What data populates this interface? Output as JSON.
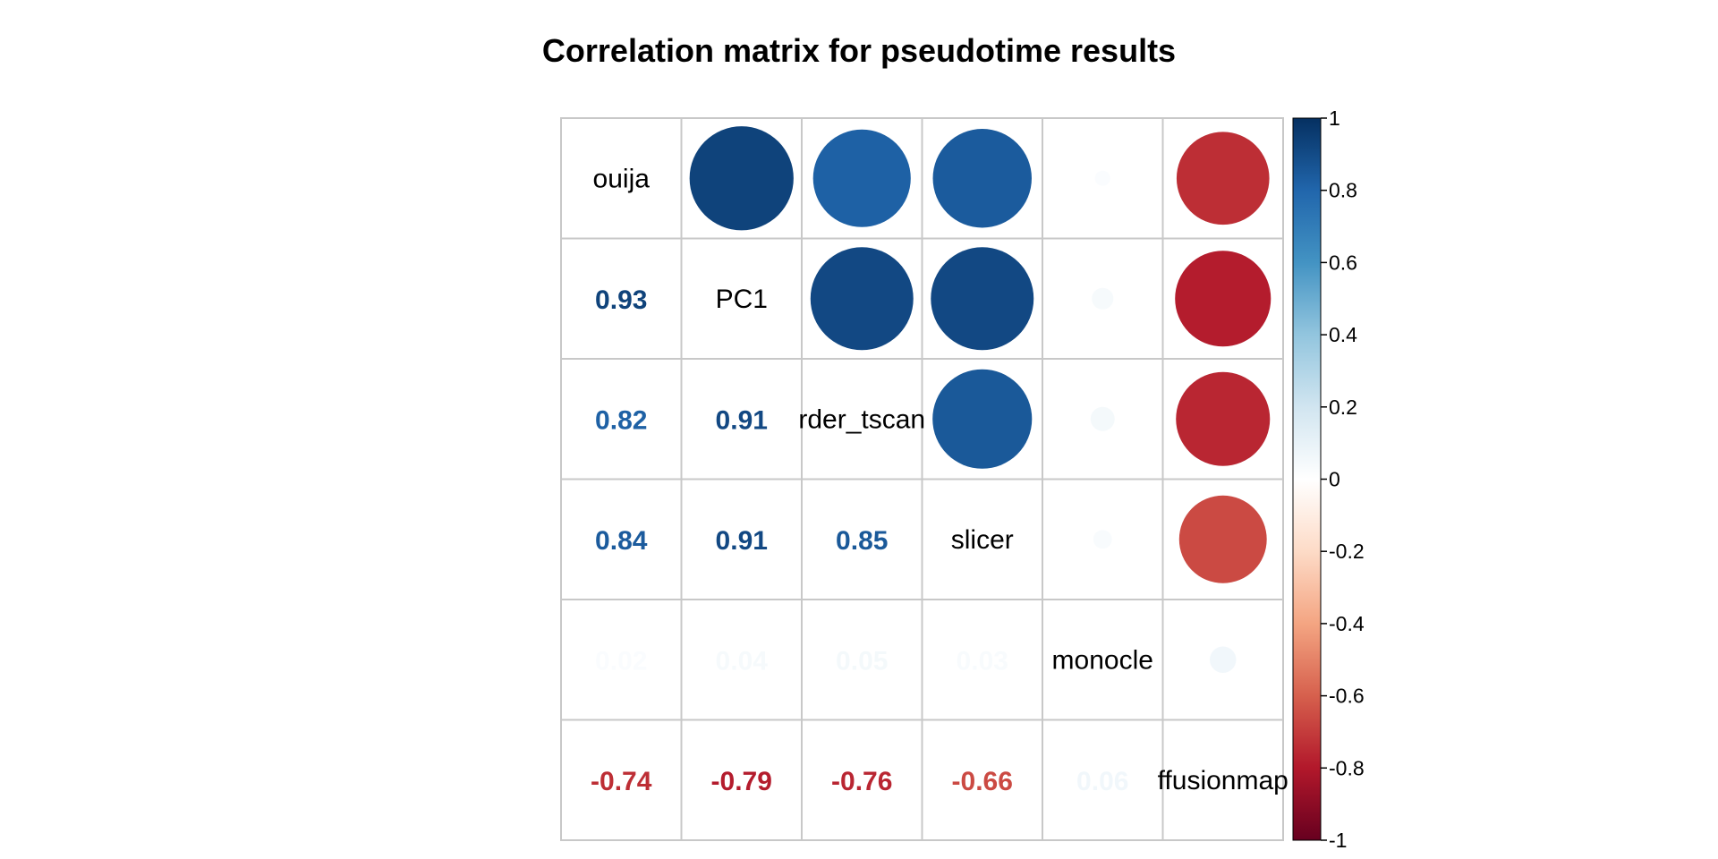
{
  "chart_data": {
    "type": "heatmap",
    "title": "Correlation matrix for pseudotime results",
    "variables": [
      "ouija",
      "PC1",
      "rder_tscan",
      "slicer",
      "monocle",
      "ffusionmap"
    ],
    "matrix": [
      [
        1.0,
        0.93,
        0.82,
        0.84,
        0.02,
        -0.74
      ],
      [
        0.93,
        1.0,
        0.91,
        0.91,
        0.04,
        -0.79
      ],
      [
        0.82,
        0.91,
        1.0,
        0.85,
        0.05,
        -0.76
      ],
      [
        0.84,
        0.91,
        0.85,
        1.0,
        0.03,
        -0.66
      ],
      [
        0.02,
        0.04,
        0.05,
        0.03,
        1.0,
        0.06
      ],
      [
        -0.74,
        -0.79,
        -0.76,
        -0.66,
        0.06,
        1.0
      ]
    ],
    "lower_labels": [
      [
        "",
        "",
        "",
        "",
        "",
        ""
      ],
      [
        "0.93",
        "",
        "",
        "",
        "",
        ""
      ],
      [
        "0.82",
        "0.91",
        "",
        "",
        "",
        ""
      ],
      [
        "0.84",
        "0.91",
        "0.85",
        "",
        "",
        ""
      ],
      [
        "0.02",
        "0.04",
        "0.05",
        "0.03",
        "",
        ""
      ],
      [
        "-0.74",
        "-0.79",
        "-0.76",
        "-0.66",
        "0.06",
        ""
      ]
    ],
    "upper_method": "circle",
    "lower_method": "number",
    "diagonal": "variable names",
    "colorbar": {
      "ticks": [
        "1",
        "0.8",
        "0.6",
        "0.4",
        "0.2",
        "0",
        "-0.2",
        "-0.4",
        "-0.6",
        "-0.8",
        "-1"
      ],
      "range": [
        -1,
        1
      ],
      "colors": [
        "#67001f",
        "#b2182b",
        "#d6604d",
        "#f4a582",
        "#fddbc7",
        "#ffffff",
        "#d1e5f0",
        "#92c5de",
        "#4393c3",
        "#2166ac",
        "#053061"
      ]
    },
    "grid": true
  }
}
